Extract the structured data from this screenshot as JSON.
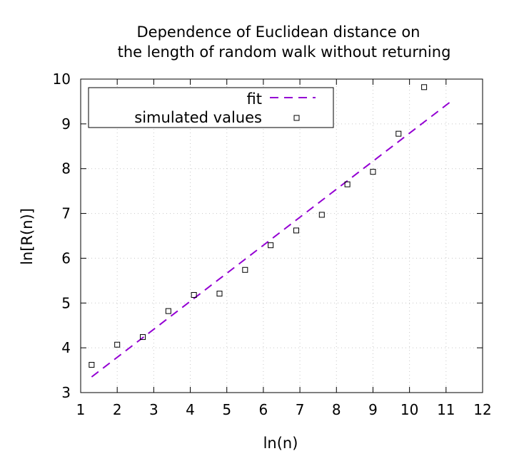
{
  "chart_data": {
    "type": "scatter",
    "title_lines": [
      "Dependence of Euclidean distance on",
      "the length of random walk without returning"
    ],
    "xlabel": "ln(n)",
    "ylabel": "ln[R(n)]",
    "xlim": [
      1,
      12
    ],
    "ylim": [
      3,
      10
    ],
    "xticks": [
      1,
      2,
      3,
      4,
      5,
      6,
      7,
      8,
      9,
      10,
      11,
      12
    ],
    "yticks": [
      3,
      4,
      5,
      6,
      7,
      8,
      9,
      10
    ],
    "grid": true,
    "legend_position": "top-left",
    "series": [
      {
        "name": "fit",
        "kind": "line",
        "style": "dashed",
        "color": "#9400d3",
        "x": [
          1.3,
          11.1
        ],
        "y": [
          3.35,
          9.48
        ]
      },
      {
        "name": "simulated values",
        "kind": "points",
        "marker": "open-square",
        "color": "#000000",
        "x": [
          1.3,
          2.0,
          2.7,
          3.4,
          4.1,
          4.8,
          5.5,
          6.2,
          6.9,
          7.6,
          8.3,
          9.0,
          9.7,
          10.4
        ],
        "y": [
          3.62,
          4.07,
          4.24,
          4.82,
          5.18,
          5.21,
          5.74,
          6.29,
          6.62,
          6.97,
          7.65,
          7.93,
          8.78,
          9.82
        ]
      }
    ]
  }
}
